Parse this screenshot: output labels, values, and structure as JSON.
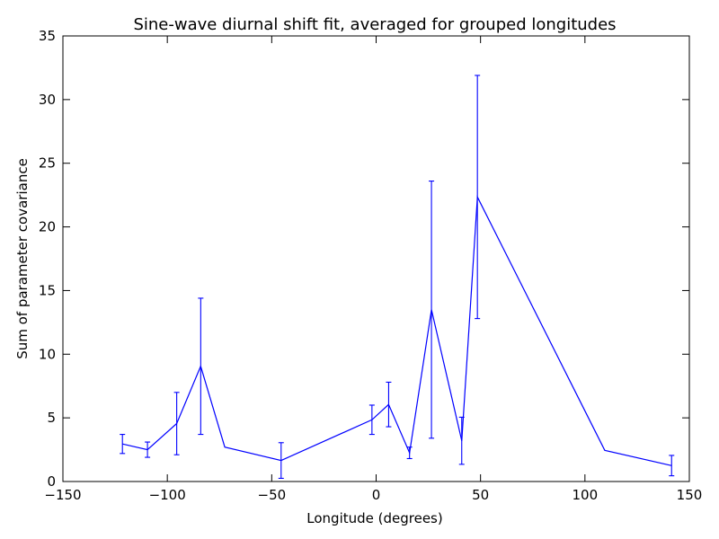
{
  "chart_data": {
    "type": "line",
    "title": "Sine-wave diurnal shift fit, averaged for grouped longitudes",
    "xlabel": "Longitude (degrees)",
    "ylabel": "Sum of parameter covariance",
    "xlim": [
      -150,
      150
    ],
    "ylim": [
      0,
      35
    ],
    "xticks": [
      -150,
      -100,
      -50,
      0,
      50,
      100,
      150
    ],
    "yticks": [
      0,
      5,
      10,
      15,
      20,
      25,
      30,
      35
    ],
    "grid": false,
    "legend": "none",
    "series_color": "#0000ff",
    "x": [
      -121.5,
      -109.5,
      -95.5,
      -84.0,
      -72.5,
      -45.5,
      -2.0,
      6.0,
      16.0,
      26.5,
      41.0,
      48.5,
      109.5,
      141.5
    ],
    "y": [
      2.95,
      2.5,
      4.55,
      9.05,
      2.7,
      1.65,
      4.85,
      6.05,
      2.25,
      13.5,
      3.2,
      22.35,
      2.45,
      1.25
    ],
    "yerr": [
      0.75,
      0.6,
      2.45,
      5.35,
      0.0,
      1.4,
      1.15,
      1.75,
      0.45,
      10.1,
      1.85,
      9.55,
      0.0,
      0.8
    ]
  }
}
